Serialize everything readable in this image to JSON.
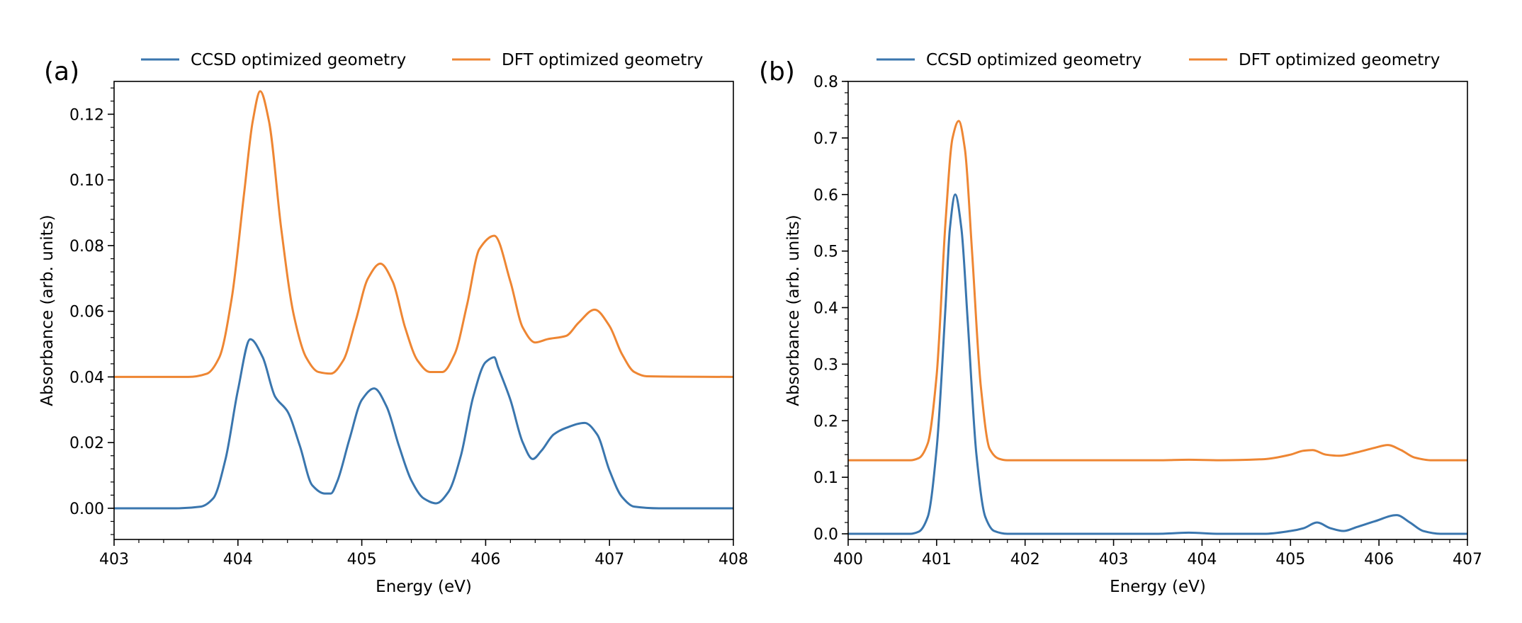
{
  "chart_data": [
    {
      "panel": "(a)",
      "type": "line",
      "xlabel": "Energy (eV)",
      "ylabel": "Absorbance (arb. units)",
      "xlim": [
        403,
        408
      ],
      "ylim": [
        -0.0095,
        0.13
      ],
      "xticks": [
        403,
        404,
        405,
        406,
        407,
        408
      ],
      "xtick_labels": [
        "403",
        "404",
        "405",
        "406",
        "407",
        "408"
      ],
      "yticks": [
        0.0,
        0.02,
        0.04,
        0.06,
        0.08,
        0.1,
        0.12
      ],
      "ytick_labels": [
        "0.00",
        "0.02",
        "0.04",
        "0.06",
        "0.08",
        "0.10",
        "0.12"
      ],
      "legend_position": "top-center, outside",
      "series": [
        {
          "name": "CCSD optimized geometry",
          "color": "#3a76ae",
          "x": [
            403.0,
            403.5,
            403.7,
            403.8,
            403.9,
            404.0,
            404.1,
            404.2,
            404.3,
            404.4,
            404.5,
            404.6,
            404.7,
            404.75,
            404.8,
            404.9,
            405.0,
            405.1,
            405.2,
            405.3,
            405.4,
            405.5,
            405.6,
            405.7,
            405.8,
            405.9,
            406.0,
            406.07,
            406.1,
            406.2,
            406.3,
            406.38,
            406.45,
            406.55,
            406.65,
            406.8,
            406.9,
            407.0,
            407.1,
            407.2,
            407.4,
            408.0
          ],
          "y": [
            0.0,
            0.0,
            0.0005,
            0.003,
            0.015,
            0.036,
            0.0515,
            0.046,
            0.034,
            0.0295,
            0.019,
            0.007,
            0.0045,
            0.0045,
            0.008,
            0.021,
            0.033,
            0.0365,
            0.031,
            0.019,
            0.0085,
            0.003,
            0.0015,
            0.005,
            0.016,
            0.034,
            0.0445,
            0.046,
            0.043,
            0.033,
            0.02,
            0.015,
            0.0175,
            0.0225,
            0.0245,
            0.026,
            0.0225,
            0.0115,
            0.0035,
            0.0005,
            0.0,
            0.0
          ]
        },
        {
          "name": "DFT optimized geometry",
          "color": "#ee8633",
          "x": [
            403.0,
            403.6,
            403.75,
            403.85,
            403.95,
            404.05,
            404.12,
            404.18,
            404.25,
            404.35,
            404.45,
            404.55,
            404.65,
            404.75,
            404.85,
            404.95,
            405.05,
            405.15,
            405.25,
            405.35,
            405.45,
            405.55,
            405.65,
            405.75,
            405.85,
            405.95,
            406.07,
            406.2,
            406.3,
            406.4,
            406.5,
            406.65,
            406.75,
            406.88,
            407.0,
            407.1,
            407.2,
            407.3,
            408.0
          ],
          "y": [
            0.04,
            0.04,
            0.041,
            0.046,
            0.064,
            0.096,
            0.118,
            0.127,
            0.118,
            0.085,
            0.059,
            0.046,
            0.0415,
            0.041,
            0.045,
            0.057,
            0.07,
            0.0745,
            0.069,
            0.055,
            0.045,
            0.0415,
            0.0415,
            0.047,
            0.062,
            0.079,
            0.083,
            0.069,
            0.055,
            0.0505,
            0.0515,
            0.0525,
            0.0565,
            0.0605,
            0.0555,
            0.047,
            0.0415,
            0.0402,
            0.04
          ]
        }
      ]
    },
    {
      "panel": "(b)",
      "type": "line",
      "xlabel": "Energy (eV)",
      "ylabel": "Absorbance (arb. units)",
      "xlim": [
        400,
        407
      ],
      "ylim": [
        -0.01,
        0.8
      ],
      "xticks": [
        400,
        401,
        402,
        403,
        404,
        405,
        406,
        407
      ],
      "xtick_labels": [
        "400",
        "401",
        "402",
        "403",
        "404",
        "405",
        "406",
        "407"
      ],
      "yticks": [
        0.0,
        0.1,
        0.2,
        0.3,
        0.4,
        0.5,
        0.6,
        0.7,
        0.8
      ],
      "ytick_labels": [
        "0.0",
        "0.1",
        "0.2",
        "0.3",
        "0.4",
        "0.5",
        "0.6",
        "0.7",
        "0.8"
      ],
      "legend_position": "top-center, outside",
      "series": [
        {
          "name": "CCSD optimized geometry",
          "color": "#3a76ae",
          "x": [
            400.0,
            400.7,
            400.8,
            400.9,
            401.0,
            401.1,
            401.15,
            401.21,
            401.28,
            401.35,
            401.45,
            401.55,
            401.65,
            401.8,
            403.5,
            403.85,
            404.2,
            404.7,
            405.0,
            405.15,
            405.3,
            405.45,
            405.6,
            405.75,
            405.95,
            406.2,
            406.35,
            406.5,
            406.7,
            407.0
          ],
          "y": [
            0.0,
            0.0,
            0.004,
            0.03,
            0.15,
            0.4,
            0.54,
            0.6,
            0.54,
            0.38,
            0.14,
            0.03,
            0.005,
            0.0,
            0.0,
            0.002,
            0.0,
            0.0,
            0.005,
            0.01,
            0.02,
            0.01,
            0.005,
            0.012,
            0.022,
            0.033,
            0.02,
            0.005,
            0.0,
            0.0
          ]
        },
        {
          "name": "DFT optimized geometry",
          "color": "#ee8633",
          "x": [
            400.0,
            400.7,
            400.8,
            400.9,
            401.0,
            401.1,
            401.18,
            401.25,
            401.32,
            401.4,
            401.5,
            401.6,
            401.7,
            401.8,
            403.5,
            403.85,
            404.2,
            404.7,
            405.0,
            405.15,
            405.25,
            405.4,
            405.55,
            405.75,
            405.95,
            406.1,
            406.25,
            406.4,
            406.6,
            407.0
          ],
          "y": [
            0.13,
            0.13,
            0.134,
            0.16,
            0.28,
            0.55,
            0.7,
            0.73,
            0.68,
            0.5,
            0.26,
            0.15,
            0.133,
            0.13,
            0.13,
            0.131,
            0.13,
            0.132,
            0.14,
            0.147,
            0.148,
            0.14,
            0.138,
            0.144,
            0.152,
            0.157,
            0.148,
            0.135,
            0.13,
            0.13
          ]
        }
      ]
    }
  ]
}
